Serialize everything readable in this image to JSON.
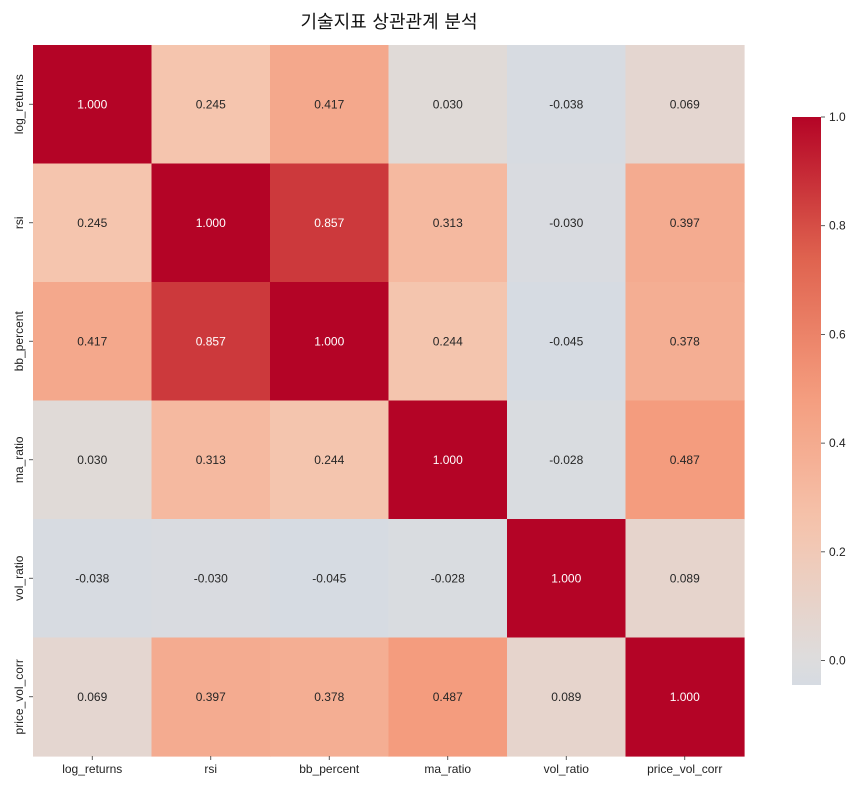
{
  "chart_data": {
    "type": "heatmap",
    "title": "기술지표 상관관계 분석",
    "xlabel": "",
    "ylabel": "",
    "x_categories": [
      "log_returns",
      "rsi",
      "bb_percent",
      "ma_ratio",
      "vol_ratio",
      "price_vol_corr"
    ],
    "y_categories": [
      "log_returns",
      "rsi",
      "bb_percent",
      "ma_ratio",
      "vol_ratio",
      "price_vol_corr"
    ],
    "values": [
      [
        1.0,
        0.245,
        0.417,
        0.03,
        -0.038,
        0.069
      ],
      [
        0.245,
        1.0,
        0.857,
        0.313,
        -0.03,
        0.397
      ],
      [
        0.417,
        0.857,
        1.0,
        0.244,
        -0.045,
        0.378
      ],
      [
        0.03,
        0.313,
        0.244,
        1.0,
        -0.028,
        0.487
      ],
      [
        -0.038,
        -0.03,
        -0.045,
        -0.028,
        1.0,
        0.089
      ],
      [
        0.069,
        0.397,
        0.378,
        0.487,
        0.089,
        1.0
      ]
    ],
    "cell_labels": [
      [
        "1.000",
        "0.245",
        "0.417",
        "0.030",
        "-0.038",
        "0.069"
      ],
      [
        "0.245",
        "1.000",
        "0.857",
        "0.313",
        "-0.030",
        "0.397"
      ],
      [
        "0.417",
        "0.857",
        "1.000",
        "0.244",
        "-0.045",
        "0.378"
      ],
      [
        "0.030",
        "0.313",
        "0.244",
        "1.000",
        "-0.028",
        "0.487"
      ],
      [
        "-0.038",
        "-0.030",
        "-0.045",
        "-0.028",
        "1.000",
        "0.089"
      ],
      [
        "0.069",
        "0.397",
        "0.378",
        "0.487",
        "0.089",
        "1.000"
      ]
    ],
    "colormap": "coolwarm",
    "center": 0,
    "value_range": [
      -0.045,
      1.0
    ],
    "colorbar": {
      "ticks": [
        0.0,
        0.2,
        0.4,
        0.6,
        0.8,
        1.0
      ],
      "tick_labels": [
        "0.0",
        "0.2",
        "0.4",
        "0.6",
        "0.8",
        "1.0"
      ],
      "placement": "right"
    },
    "grid": false
  }
}
